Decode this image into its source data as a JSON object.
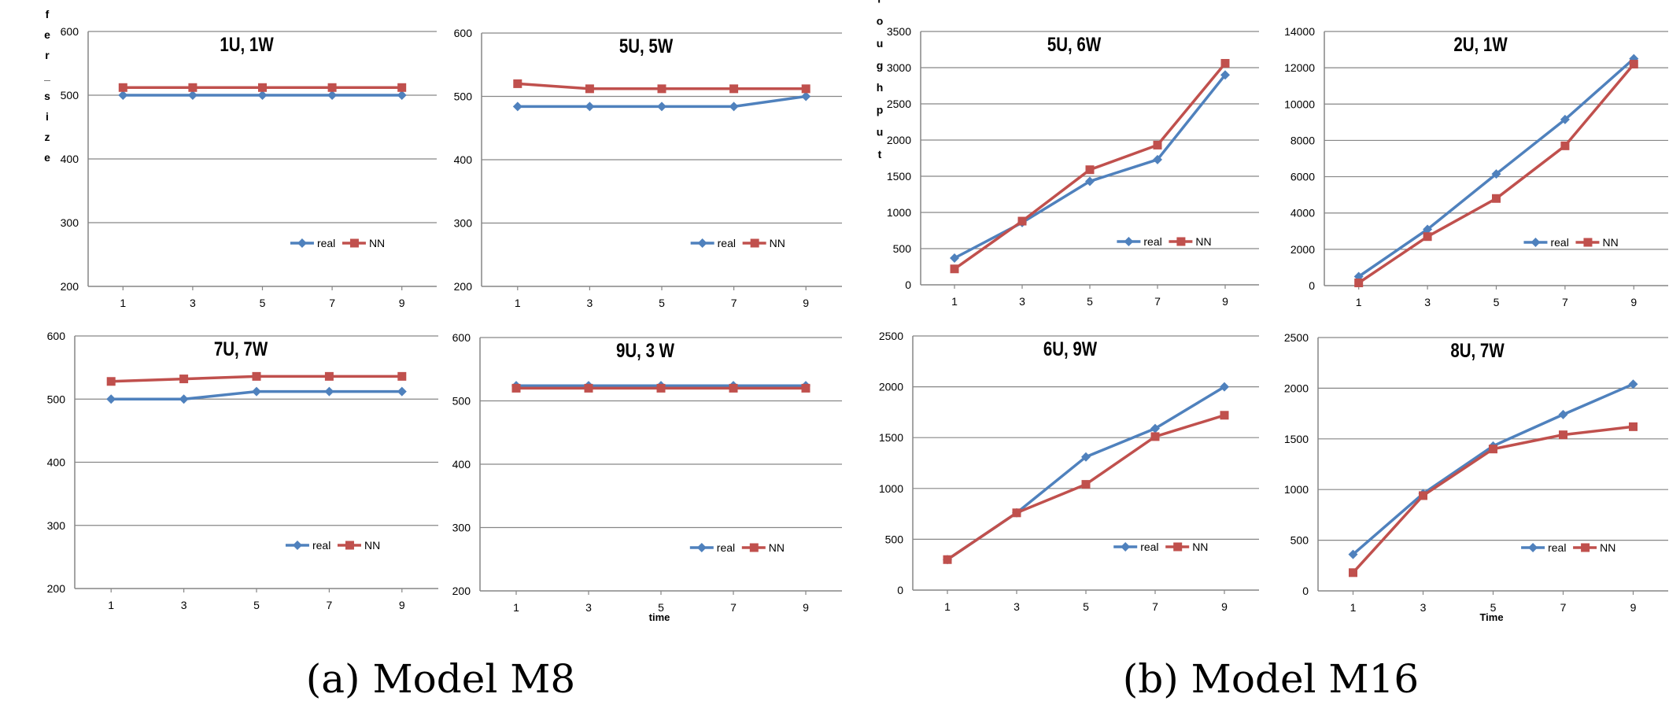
{
  "captions": {
    "left": "(a) Model M8",
    "right": "(b) Model M16"
  },
  "colors": {
    "real": "#4F81BD",
    "nn": "#C0504D",
    "grid": "#868686",
    "axis": "#868686"
  },
  "chart_data": [
    {
      "id": "m8-1u1w",
      "type": "line",
      "title": "1U, 1W",
      "xlabel": "",
      "ylabel": "Buffer_size",
      "categories": [
        "1",
        "3",
        "5",
        "7",
        "9"
      ],
      "yticks": [
        200,
        300,
        400,
        500,
        600
      ],
      "ylim": [
        200,
        600
      ],
      "legend": "bottom-right",
      "legend_labels": [
        "real",
        "NN"
      ],
      "series": [
        {
          "name": "real",
          "values": [
            500,
            500,
            500,
            500,
            500
          ]
        },
        {
          "name": "NN",
          "values": [
            512,
            512,
            512,
            512,
            512
          ]
        }
      ]
    },
    {
      "id": "m8-5u5w",
      "type": "line",
      "title": "5U, 5W",
      "xlabel": "",
      "ylabel": "",
      "categories": [
        "1",
        "3",
        "5",
        "7",
        "9"
      ],
      "yticks": [
        200,
        300,
        400,
        500,
        600
      ],
      "ylim": [
        200,
        600
      ],
      "legend": "bottom-right",
      "legend_labels": [
        "real",
        "NN"
      ],
      "series": [
        {
          "name": "real",
          "values": [
            484,
            484,
            484,
            484,
            500
          ]
        },
        {
          "name": "NN",
          "values": [
            520,
            512,
            512,
            512,
            512
          ]
        }
      ]
    },
    {
      "id": "m8-7u7w",
      "type": "line",
      "title": "7U, 7W",
      "xlabel": "",
      "ylabel": "",
      "categories": [
        "1",
        "3",
        "5",
        "7",
        "9"
      ],
      "yticks": [
        200,
        300,
        400,
        500,
        600
      ],
      "ylim": [
        200,
        600
      ],
      "legend": "bottom-right",
      "legend_labels": [
        "real",
        "NN"
      ],
      "series": [
        {
          "name": "real",
          "values": [
            500,
            500,
            512,
            512,
            512
          ]
        },
        {
          "name": "NN",
          "values": [
            528,
            532,
            536,
            536,
            536
          ]
        }
      ]
    },
    {
      "id": "m8-9u3w",
      "type": "line",
      "title": "9U, 3 W",
      "xlabel": "time",
      "ylabel": "",
      "categories": [
        "1",
        "3",
        "5",
        "7",
        "9"
      ],
      "yticks": [
        200,
        300,
        400,
        500,
        600
      ],
      "ylim": [
        200,
        600
      ],
      "legend": "bottom-right",
      "legend_labels": [
        "real",
        "NN"
      ],
      "series": [
        {
          "name": "real",
          "values": [
            524,
            524,
            524,
            524,
            524
          ]
        },
        {
          "name": "NN",
          "values": [
            520,
            520,
            520,
            520,
            520
          ]
        }
      ]
    },
    {
      "id": "m16-5u6w",
      "type": "line",
      "title": "5U, 6W",
      "xlabel": "",
      "ylabel": "Throughput",
      "categories": [
        "1",
        "3",
        "5",
        "7",
        "9"
      ],
      "yticks": [
        0,
        500,
        1000,
        1500,
        2000,
        2500,
        3000,
        3500
      ],
      "ylim": [
        0,
        3500
      ],
      "legend": "bottom-right",
      "legend_labels": [
        "real",
        "NN"
      ],
      "series": [
        {
          "name": "real",
          "values": [
            370,
            860,
            1430,
            1730,
            2900
          ]
        },
        {
          "name": "NN",
          "values": [
            220,
            880,
            1590,
            1930,
            3060
          ]
        }
      ]
    },
    {
      "id": "m16-2u1w",
      "type": "line",
      "title": "2U, 1W",
      "xlabel": "",
      "ylabel": "",
      "categories": [
        "1",
        "3",
        "5",
        "7",
        "9"
      ],
      "yticks": [
        0,
        2000,
        4000,
        6000,
        8000,
        10000,
        12000,
        14000
      ],
      "ylim": [
        0,
        14000
      ],
      "legend": "bottom-right",
      "legend_labels": [
        "real",
        "NN"
      ],
      "series": [
        {
          "name": "real",
          "values": [
            500,
            3100,
            6150,
            9150,
            12500
          ]
        },
        {
          "name": "NN",
          "values": [
            150,
            2700,
            4800,
            7700,
            12200
          ]
        }
      ]
    },
    {
      "id": "m16-6u9w",
      "type": "line",
      "title": "6U, 9W",
      "xlabel": "",
      "ylabel": "",
      "categories": [
        "1",
        "3",
        "5",
        "7",
        "9"
      ],
      "yticks": [
        0,
        500,
        1000,
        1500,
        2000,
        2500
      ],
      "ylim": [
        0,
        2500
      ],
      "legend": "bottom-right",
      "legend_labels": [
        "real",
        "NN"
      ],
      "series": [
        {
          "name": "real",
          "values": [
            300,
            760,
            1310,
            1590,
            2000
          ]
        },
        {
          "name": "NN",
          "values": [
            300,
            760,
            1040,
            1510,
            1720
          ]
        }
      ]
    },
    {
      "id": "m16-8u7w",
      "type": "line",
      "title": "8U, 7W",
      "xlabel": "Time",
      "ylabel": "",
      "categories": [
        "1",
        "3",
        "5",
        "7",
        "9"
      ],
      "yticks": [
        0,
        500,
        1000,
        1500,
        2000,
        2500
      ],
      "ylim": [
        0,
        2500
      ],
      "legend": "bottom-right",
      "legend_labels": [
        "real",
        "NN"
      ],
      "series": [
        {
          "name": "real",
          "values": [
            360,
            960,
            1430,
            1740,
            2040
          ]
        },
        {
          "name": "NN",
          "values": [
            180,
            940,
            1400,
            1540,
            1620
          ]
        }
      ]
    }
  ]
}
